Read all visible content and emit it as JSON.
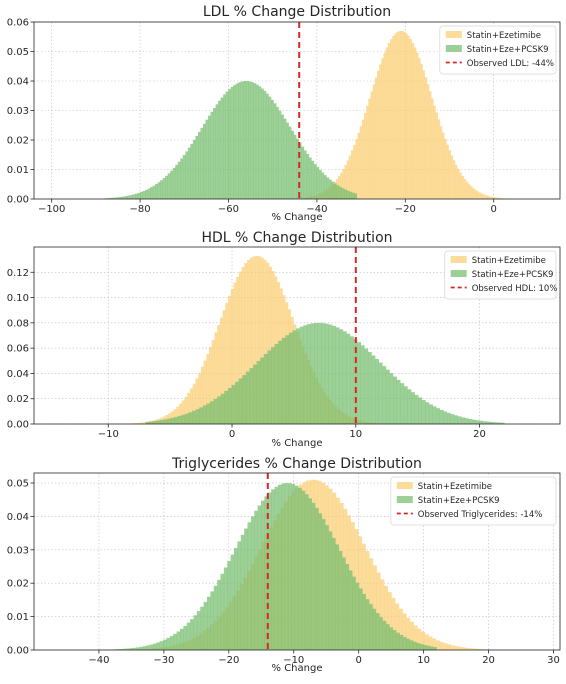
{
  "colors": {
    "series_a": "#FBCB6B",
    "series_b": "#76BE6F",
    "observed_line": "#D62728",
    "axis": "#262626",
    "grid": "#B0B0B0"
  },
  "chart_data": [
    {
      "type": "histogram",
      "title": "LDL % Change Distribution",
      "xlabel": "% Change",
      "ylabel": "",
      "xlim": [
        -104,
        15
      ],
      "ylim": [
        0,
        0.06
      ],
      "xticks": [
        -100,
        -80,
        -60,
        -40,
        -20,
        0
      ],
      "xtick_labels": [
        "−100",
        "−80",
        "−60",
        "−40",
        "−20",
        "0"
      ],
      "yticks": [
        0,
        0.01,
        0.02,
        0.03,
        0.04,
        0.05,
        0.06
      ],
      "ytick_labels": [
        "0.00",
        "0.01",
        "0.02",
        "0.03",
        "0.04",
        "0.05",
        "0.06"
      ],
      "grid": true,
      "legend_position": "top-right",
      "series": [
        {
          "name": "Statin+Ezetimibe",
          "distribution": "normal",
          "mean": -21,
          "sd": 7,
          "peak_density": 0.057,
          "support": [
            -46,
            3
          ]
        },
        {
          "name": "Statin+Eze+PCSK9",
          "distribution": "normal",
          "mean": -56,
          "sd": 10,
          "peak_density": 0.04,
          "support": [
            -88,
            -31
          ]
        }
      ],
      "observed": {
        "label": "Observed LDL: -44%",
        "value": -44
      }
    },
    {
      "type": "histogram",
      "title": "HDL % Change Distribution",
      "xlabel": "% Change",
      "ylabel": "",
      "xlim": [
        -16,
        26.5
      ],
      "ylim": [
        0,
        0.14
      ],
      "xticks": [
        -10,
        0,
        10,
        20
      ],
      "xtick_labels": [
        "−10",
        "0",
        "10",
        "20"
      ],
      "yticks": [
        0,
        0.02,
        0.04,
        0.06,
        0.08,
        0.1,
        0.12
      ],
      "ytick_labels": [
        "0.00",
        "0.02",
        "0.04",
        "0.06",
        "0.08",
        "0.10",
        "0.12"
      ],
      "grid": true,
      "legend_position": "top-right",
      "series": [
        {
          "name": "Statin+Ezetimibe",
          "distribution": "normal",
          "mean": 2,
          "sd": 3,
          "peak_density": 0.133,
          "support": [
            -10,
            12
          ]
        },
        {
          "name": "Statin+Eze+PCSK9",
          "distribution": "normal",
          "mean": 7,
          "sd": 5,
          "peak_density": 0.08,
          "support": [
            -7,
            22
          ]
        }
      ],
      "observed": {
        "label": "Observed HDL: 10%",
        "value": 10
      }
    },
    {
      "type": "histogram",
      "title": "Triglycerides % Change Distribution",
      "xlabel": "% Change",
      "ylabel": "",
      "xlim": [
        -50,
        31
      ],
      "ylim": [
        0,
        0.053
      ],
      "xticks": [
        -40,
        -30,
        -20,
        -10,
        0,
        10,
        20,
        30
      ],
      "xtick_labels": [
        "−40",
        "−30",
        "−20",
        "−10",
        "0",
        "10",
        "20",
        "30"
      ],
      "yticks": [
        0,
        0.01,
        0.02,
        0.03,
        0.04,
        0.05
      ],
      "ytick_labels": [
        "0.00",
        "0.01",
        "0.02",
        "0.03",
        "0.04",
        "0.05"
      ],
      "grid": true,
      "legend_position": "top-right",
      "series": [
        {
          "name": "Statin+Ezetimibe",
          "distribution": "normal",
          "mean": -7,
          "sd": 8,
          "peak_density": 0.051,
          "support": [
            -36,
            21
          ]
        },
        {
          "name": "Statin+Eze+PCSK9",
          "distribution": "normal",
          "mean": -11,
          "sd": 8,
          "peak_density": 0.05,
          "support": [
            -40,
            12
          ]
        }
      ],
      "observed": {
        "label": "Observed Triglycerides: -14%",
        "value": -14
      }
    }
  ]
}
